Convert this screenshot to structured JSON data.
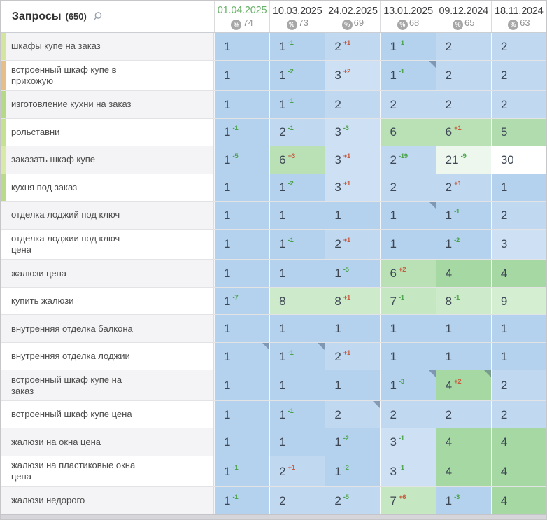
{
  "queries_header": {
    "label": "Запросы",
    "count": "(650)"
  },
  "icons": {
    "percent": "%",
    "search": "magnifier"
  },
  "columns": [
    {
      "date": "01.04.2025",
      "percent": "74",
      "active": true
    },
    {
      "date": "10.03.2025",
      "percent": "73",
      "active": false
    },
    {
      "date": "24.02.2025",
      "percent": "69",
      "active": false
    },
    {
      "date": "13.01.2025",
      "percent": "68",
      "active": false
    },
    {
      "date": "09.12.2024",
      "percent": "65",
      "active": false
    },
    {
      "date": "18.11.2024",
      "percent": "63",
      "active": false
    }
  ],
  "colors": {
    "position_1": "#b4d1ee",
    "position_2": "#c1d8f1",
    "position_3": "#cee0f4",
    "position_4": "#a6d8a4",
    "position_5": "#b1ddae",
    "position_6": "#bae1b6",
    "position_7": "#c5e7c1",
    "position_8": "#cdebca",
    "position_9": "#d4eed2",
    "position_11_30": "#edf7ee",
    "position_30_plus": "#ffffff",
    "change_up_green": "#4aa34a",
    "change_down_red": "#c75b3e",
    "active_date_green": "#68b168"
  },
  "rows": [
    {
      "keyword": "шкафы купе на заказ",
      "strip": "#d3e5a1",
      "cells": [
        {
          "pos": 1
        },
        {
          "pos": 1,
          "change": -1
        },
        {
          "pos": 2,
          "change": 1
        },
        {
          "pos": 1,
          "change": -1
        },
        {
          "pos": 2
        },
        {
          "pos": 2
        }
      ]
    },
    {
      "keyword": "встроенный шкаф купе в прихожую",
      "strip": "#e5be8a",
      "cells": [
        {
          "pos": 1
        },
        {
          "pos": 1,
          "change": -2
        },
        {
          "pos": 3,
          "change": 2
        },
        {
          "pos": 1,
          "change": -1,
          "corner": true
        },
        {
          "pos": 2
        },
        {
          "pos": 2
        }
      ]
    },
    {
      "keyword": "изготовление кухни на заказ",
      "strip": "#b5d987",
      "cells": [
        {
          "pos": 1
        },
        {
          "pos": 1,
          "change": -1
        },
        {
          "pos": 2
        },
        {
          "pos": 2
        },
        {
          "pos": 2
        },
        {
          "pos": 2
        }
      ]
    },
    {
      "keyword": "рольставни",
      "strip": "#c4e292",
      "cells": [
        {
          "pos": 1,
          "change": -1
        },
        {
          "pos": 2,
          "change": -1
        },
        {
          "pos": 3,
          "change": -3
        },
        {
          "pos": 6
        },
        {
          "pos": 6,
          "change": 1
        },
        {
          "pos": 5
        }
      ]
    },
    {
      "keyword": "заказать шкаф купе",
      "strip": "#d9e9a8",
      "cells": [
        {
          "pos": 1,
          "change": -5
        },
        {
          "pos": 6,
          "change": 3
        },
        {
          "pos": 3,
          "change": 1
        },
        {
          "pos": 2,
          "change": -19
        },
        {
          "pos": 21,
          "change": -9
        },
        {
          "pos": 30
        }
      ]
    },
    {
      "keyword": "кухня под заказ",
      "strip": "#badb8b",
      "cells": [
        {
          "pos": 1
        },
        {
          "pos": 1,
          "change": -2
        },
        {
          "pos": 3,
          "change": 1
        },
        {
          "pos": 2
        },
        {
          "pos": 2,
          "change": 1
        },
        {
          "pos": 1
        }
      ]
    },
    {
      "keyword": "отделка лоджий под ключ",
      "strip": null,
      "cells": [
        {
          "pos": 1
        },
        {
          "pos": 1
        },
        {
          "pos": 1
        },
        {
          "pos": 1,
          "corner": true
        },
        {
          "pos": 1,
          "change": -1
        },
        {
          "pos": 2
        }
      ]
    },
    {
      "keyword": "отделка лоджии под ключ цена",
      "strip": null,
      "cells": [
        {
          "pos": 1
        },
        {
          "pos": 1,
          "change": -1
        },
        {
          "pos": 2,
          "change": 1
        },
        {
          "pos": 1
        },
        {
          "pos": 1,
          "change": -2
        },
        {
          "pos": 3
        }
      ]
    },
    {
      "keyword": "жалюзи цена",
      "strip": null,
      "cells": [
        {
          "pos": 1
        },
        {
          "pos": 1
        },
        {
          "pos": 1,
          "change": -5
        },
        {
          "pos": 6,
          "change": 2
        },
        {
          "pos": 4
        },
        {
          "pos": 4
        }
      ]
    },
    {
      "keyword": "купить жалюзи",
      "strip": null,
      "cells": [
        {
          "pos": 1,
          "change": -7
        },
        {
          "pos": 8
        },
        {
          "pos": 8,
          "change": 1
        },
        {
          "pos": 7,
          "change": -1
        },
        {
          "pos": 8,
          "change": -1
        },
        {
          "pos": 9
        }
      ]
    },
    {
      "keyword": "внутренняя отделка балкона",
      "strip": null,
      "cells": [
        {
          "pos": 1
        },
        {
          "pos": 1
        },
        {
          "pos": 1
        },
        {
          "pos": 1
        },
        {
          "pos": 1
        },
        {
          "pos": 1
        }
      ]
    },
    {
      "keyword": "внутренняя отделка лоджии",
      "strip": null,
      "cells": [
        {
          "pos": 1,
          "corner": true
        },
        {
          "pos": 1,
          "change": -1,
          "corner": true
        },
        {
          "pos": 2,
          "change": 1
        },
        {
          "pos": 1
        },
        {
          "pos": 1
        },
        {
          "pos": 1
        }
      ]
    },
    {
      "keyword": "встроенный шкаф купе на заказ",
      "strip": null,
      "cells": [
        {
          "pos": 1
        },
        {
          "pos": 1
        },
        {
          "pos": 1
        },
        {
          "pos": 1,
          "change": -3,
          "corner": true
        },
        {
          "pos": 4,
          "change": 2,
          "corner": true
        },
        {
          "pos": 2
        }
      ]
    },
    {
      "keyword": "встроенный шкаф купе цена",
      "strip": null,
      "cells": [
        {
          "pos": 1
        },
        {
          "pos": 1,
          "change": -1
        },
        {
          "pos": 2,
          "corner": true
        },
        {
          "pos": 2
        },
        {
          "pos": 2
        },
        {
          "pos": 2
        }
      ]
    },
    {
      "keyword": "жалюзи на окна цена",
      "strip": null,
      "cells": [
        {
          "pos": 1
        },
        {
          "pos": 1
        },
        {
          "pos": 1,
          "change": -2
        },
        {
          "pos": 3,
          "change": -1
        },
        {
          "pos": 4
        },
        {
          "pos": 4
        }
      ]
    },
    {
      "keyword": "жалюзи на пластиковые окна цена",
      "strip": null,
      "cells": [
        {
          "pos": 1,
          "change": -1
        },
        {
          "pos": 2,
          "change": 1
        },
        {
          "pos": 1,
          "change": -2
        },
        {
          "pos": 3,
          "change": -1
        },
        {
          "pos": 4
        },
        {
          "pos": 4
        }
      ]
    },
    {
      "keyword": "жалюзи недорого",
      "strip": null,
      "cells": [
        {
          "pos": 1,
          "change": -1
        },
        {
          "pos": 2
        },
        {
          "pos": 2,
          "change": -5
        },
        {
          "pos": 7,
          "change": 6
        },
        {
          "pos": 1,
          "change": -3
        },
        {
          "pos": 4
        }
      ]
    }
  ]
}
